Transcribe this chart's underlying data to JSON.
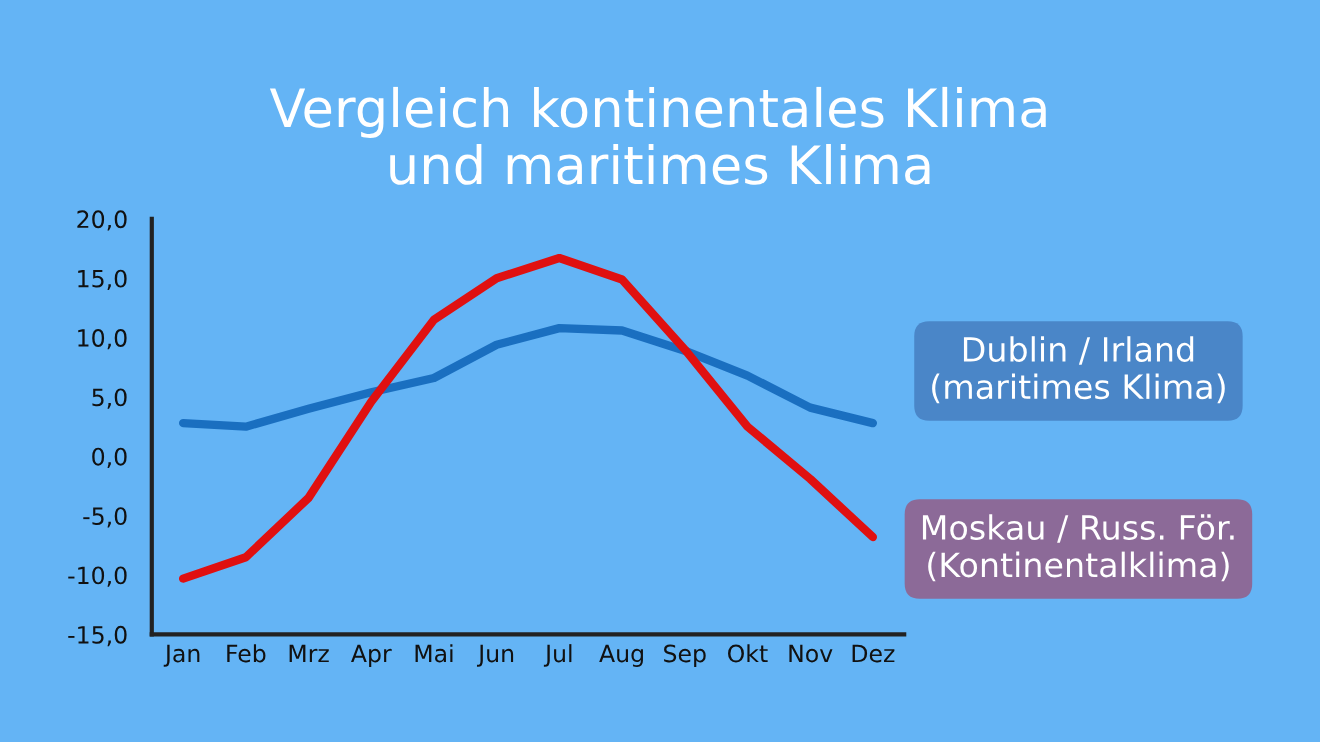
{
  "chart_data": {
    "type": "line",
    "title": "Vergleich kontinentales Klima\nund maritimes Klima",
    "categories": [
      "Jan",
      "Feb",
      "Mrz",
      "Apr",
      "Mai",
      "Jun",
      "Jul",
      "Aug",
      "Sep",
      "Okt",
      "Nov",
      "Dez"
    ],
    "series": [
      {
        "name": "Dublin / Irland\n(maritimes Klima)",
        "color": "#1a6fc0",
        "values": [
          2.8,
          2.5,
          4.0,
          5.4,
          6.6,
          9.4,
          10.8,
          10.6,
          8.9,
          6.8,
          4.1,
          2.8
        ]
      },
      {
        "name": "Moskau / Russ. För.\n(Kontinentalklima)",
        "color": "#e01010",
        "values": [
          -10.3,
          -8.5,
          -3.5,
          4.6,
          11.5,
          15.0,
          16.7,
          14.9,
          9.0,
          2.5,
          -1.9,
          -6.8
        ]
      }
    ],
    "ylim": [
      -15,
      20
    ],
    "yticks": [
      {
        "value": -15,
        "label": "-15,0"
      },
      {
        "value": -10,
        "label": "-10,0"
      },
      {
        "value": -5,
        "label": "-5,0"
      },
      {
        "value": 0,
        "label": "0,0"
      },
      {
        "value": 5,
        "label": "5,0"
      },
      {
        "value": 10,
        "label": "10,0"
      },
      {
        "value": 15,
        "label": "15,0"
      },
      {
        "value": 20,
        "label": "20,0"
      }
    ],
    "legend": "right",
    "grid": false,
    "marker": "none",
    "line_style": "solid"
  }
}
